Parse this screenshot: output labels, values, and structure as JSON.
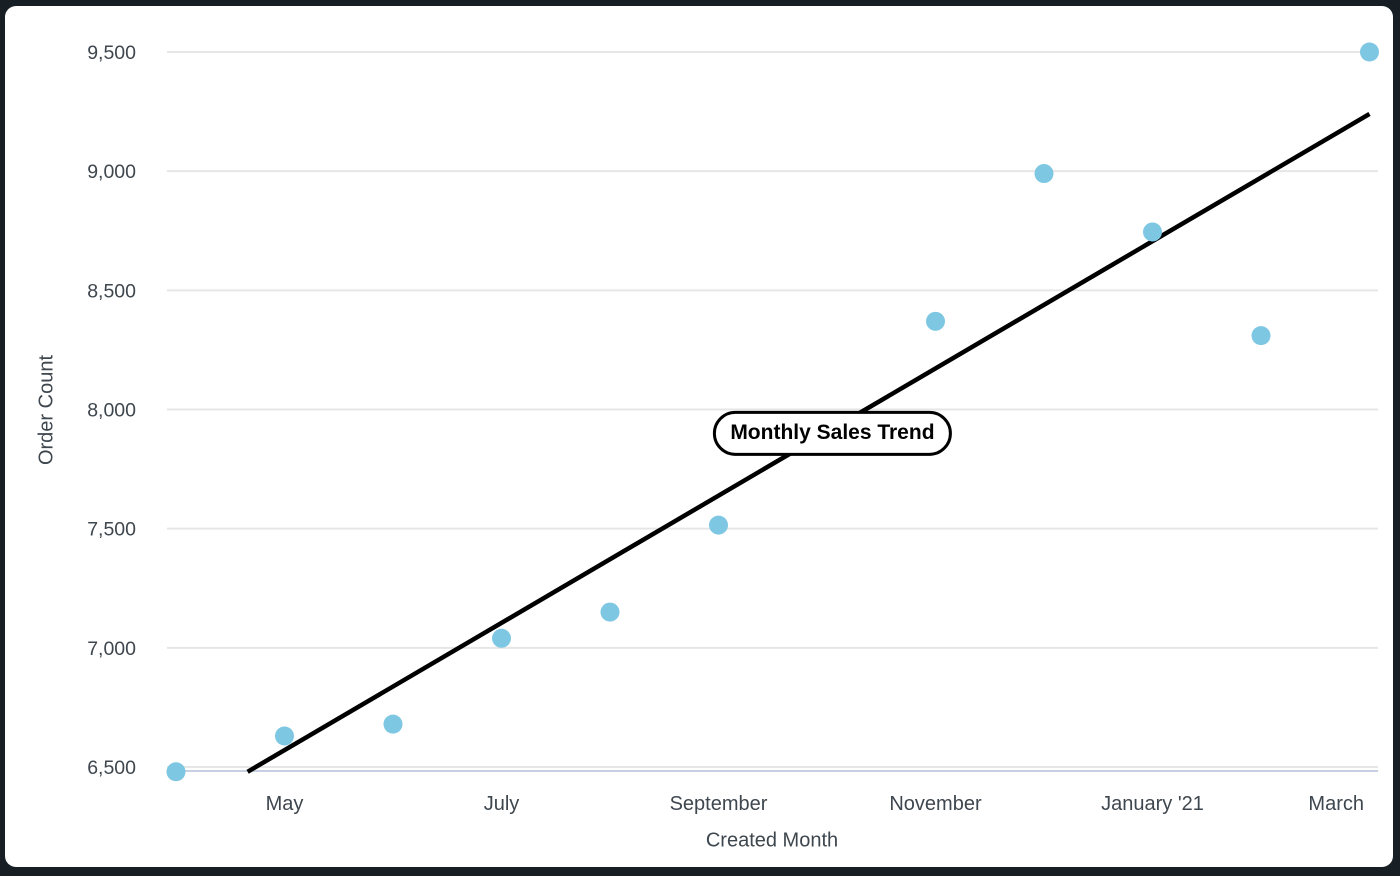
{
  "chart_data": {
    "type": "scatter",
    "title": "Monthly Sales Trend",
    "xlabel": "Created Month",
    "ylabel": "Order Count",
    "ylim": [
      6500,
      9500
    ],
    "grid": true,
    "legend": "none",
    "y_ticks": [
      6500,
      7000,
      7500,
      8000,
      8500,
      9000,
      9500
    ],
    "x_ticks": [
      {
        "label": "May",
        "month_index": 1
      },
      {
        "label": "July",
        "month_index": 3
      },
      {
        "label": "September",
        "month_index": 5
      },
      {
        "label": "November",
        "month_index": 7
      },
      {
        "label": "January '21",
        "month_index": 9
      },
      {
        "label": "March",
        "month_index": 11
      }
    ],
    "points": [
      {
        "month": "April '20",
        "month_index": 0,
        "value": 6480
      },
      {
        "month": "May",
        "month_index": 1,
        "value": 6630
      },
      {
        "month": "June",
        "month_index": 2,
        "value": 6680
      },
      {
        "month": "July",
        "month_index": 3,
        "value": 7040
      },
      {
        "month": "August",
        "month_index": 4,
        "value": 7150
      },
      {
        "month": "September",
        "month_index": 5,
        "value": 7515
      },
      {
        "month": "November",
        "month_index": 7,
        "value": 8370
      },
      {
        "month": "December",
        "month_index": 8,
        "value": 8990
      },
      {
        "month": "January '21",
        "month_index": 9,
        "value": 8745
      },
      {
        "month": "February",
        "month_index": 10,
        "value": 8310
      },
      {
        "month": "March",
        "month_index": 11,
        "value": 9500
      }
    ],
    "trend_line": {
      "x1": 0.66,
      "y1": 6480,
      "x2": 11.0,
      "y2": 9240
    },
    "annotation": {
      "label": "Monthly Sales Trend",
      "month_index": 6.05,
      "value": 7900
    },
    "colors": {
      "point": "#7ec7e3",
      "trend": "#000000",
      "grid": "#e6e6e6",
      "axis_baseline": "#c7cfe2",
      "text": "#3e464e",
      "pill_bg": "#ffffff",
      "pill_border": "#000000",
      "frame": "#171f24",
      "panel": "#ffffff"
    }
  }
}
